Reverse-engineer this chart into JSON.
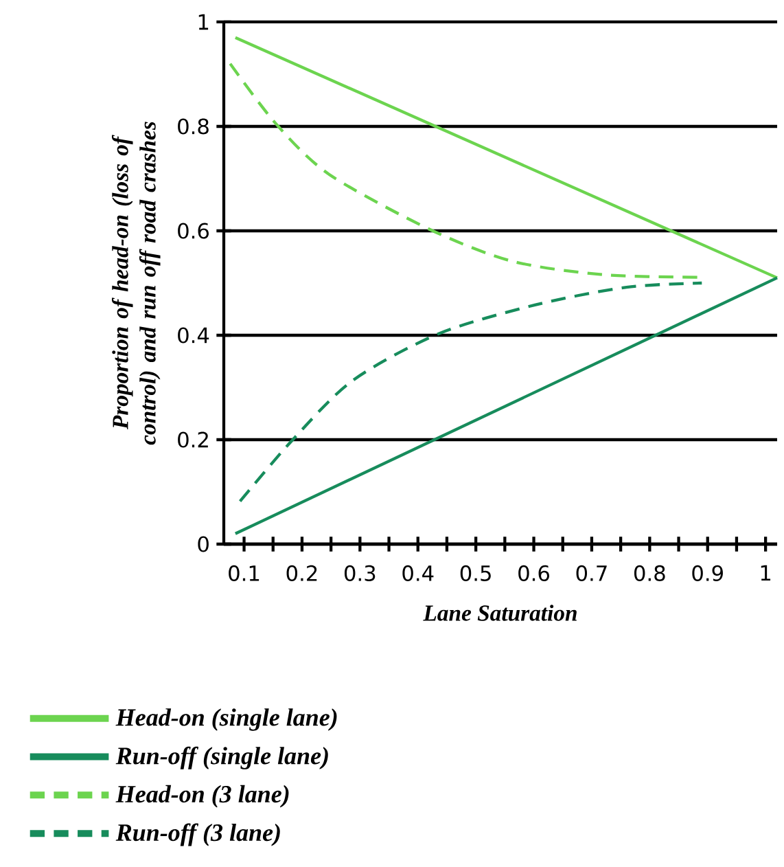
{
  "chart_data": {
    "type": "line",
    "xlabel": "Lane Saturation",
    "ylabel": "Proportion of head-on (loss of control) and run off road crashes",
    "xlim": [
      0.065,
      1.02
    ],
    "ylim": [
      0,
      1
    ],
    "xticks": [
      0.1,
      0.2,
      0.3,
      0.4,
      0.5,
      0.6,
      0.7,
      0.8,
      0.9,
      1,
      {
        "value": 0.15,
        "label": null
      },
      {
        "value": 0.25,
        "label": null
      },
      {
        "value": 0.35,
        "label": null
      },
      {
        "value": 0.45,
        "label": null
      },
      {
        "value": 0.55,
        "label": null
      },
      {
        "value": 0.65,
        "label": null
      },
      {
        "value": 0.75,
        "label": null
      },
      {
        "value": 0.85,
        "label": null
      },
      {
        "value": 0.95,
        "label": null
      }
    ],
    "yticks": [
      0,
      0.2,
      0.4,
      0.6,
      0.8,
      1
    ],
    "grid": "y",
    "legend": "bottom",
    "marker": "none",
    "series": [
      {
        "name": "Head-on (single lane)",
        "color": "#6cd44f",
        "line_style": "solid",
        "x": [
          0.085,
          1.02
        ],
        "values": [
          0.97,
          0.51
        ]
      },
      {
        "name": "Run-off (single lane)",
        "color": "#178c5c",
        "line_style": "solid",
        "x": [
          0.085,
          1.02
        ],
        "values": [
          0.02,
          0.51
        ]
      },
      {
        "name": "Head-on (3 lane)",
        "color": "#6cd44f",
        "line_style": "dashed",
        "x": [
          0.076,
          0.155,
          0.247,
          0.42,
          0.562,
          0.72,
          0.89
        ],
        "values": [
          0.92,
          0.805,
          0.708,
          0.603,
          0.542,
          0.516,
          0.511
        ]
      },
      {
        "name": "Run-off (3 lane)",
        "color": "#178c5c",
        "line_style": "dashed",
        "x": [
          0.093,
          0.18,
          0.287,
          0.436,
          0.602,
          0.76,
          0.89
        ],
        "values": [
          0.082,
          0.195,
          0.313,
          0.403,
          0.458,
          0.492,
          0.5
        ]
      }
    ]
  }
}
